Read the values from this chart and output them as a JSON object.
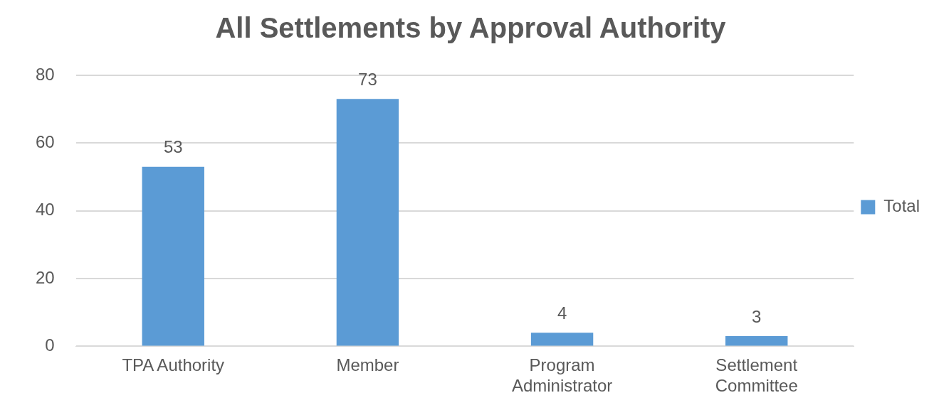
{
  "chart_data": {
    "type": "bar",
    "title": "All Settlements by Approval Authority",
    "categories": [
      "TPA Authority",
      "Member",
      "Program Administrator",
      "Settlement Committee"
    ],
    "series": [
      {
        "name": "Total",
        "color": "#5b9bd5",
        "values": [
          53,
          73,
          4,
          3
        ]
      }
    ],
    "ylim": [
      0,
      80
    ],
    "yticks": [
      0,
      20,
      40,
      60,
      80
    ],
    "grid": "y",
    "legend": "right",
    "data_labels": true
  }
}
